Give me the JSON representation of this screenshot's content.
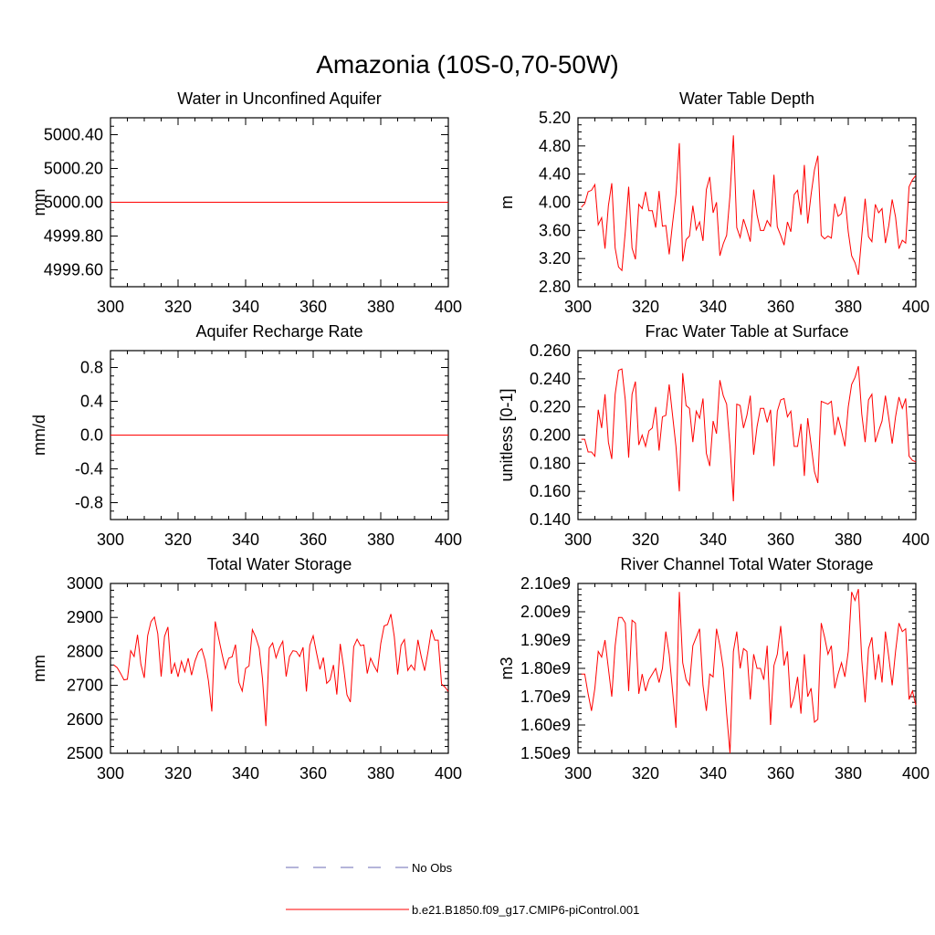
{
  "figure": {
    "title": "Amazonia (10S-0,70-50W)"
  },
  "legend": {
    "items": [
      {
        "label": "No Obs",
        "style": "dashed",
        "color": "#6b6bb5"
      },
      {
        "label": "b.e21.B1850.f09_g17.CMIP6-piControl.001",
        "style": "solid",
        "color": "#ff0000"
      }
    ]
  },
  "colors": {
    "series": "#ff0000",
    "axis": "#000000"
  },
  "chart_data": [
    {
      "type": "line",
      "title": "Water in Unconfined Aquifer",
      "ylabel": "mm",
      "xlim": [
        300,
        400
      ],
      "ylim": [
        4999.5,
        5000.5
      ],
      "xticks": [
        300,
        320,
        340,
        360,
        380,
        400
      ],
      "xtick_labels": [
        "300",
        "320",
        "340",
        "360",
        "380",
        "400"
      ],
      "yticks": [
        4999.6,
        4999.8,
        5000.0,
        5000.2,
        5000.4
      ],
      "ytick_labels": [
        "4999.60",
        "4999.80",
        "5000.00",
        "5000.20",
        "5000.40"
      ],
      "yminor": 0.05,
      "series": [
        {
          "name": "b.e21.B1850.f09_g17.CMIP6-piControl.001",
          "x_start": 300,
          "x_step": 1,
          "values": [
            5000,
            5000,
            5000,
            5000,
            5000,
            5000,
            5000,
            5000,
            5000,
            5000,
            5000,
            5000,
            5000,
            5000,
            5000,
            5000,
            5000,
            5000,
            5000,
            5000,
            5000,
            5000,
            5000,
            5000,
            5000,
            5000,
            5000,
            5000,
            5000,
            5000,
            5000,
            5000,
            5000,
            5000,
            5000,
            5000,
            5000,
            5000,
            5000,
            5000,
            5000,
            5000,
            5000,
            5000,
            5000,
            5000,
            5000,
            5000,
            5000,
            5000,
            5000,
            5000,
            5000,
            5000,
            5000,
            5000,
            5000,
            5000,
            5000,
            5000,
            5000,
            5000,
            5000,
            5000,
            5000,
            5000,
            5000,
            5000,
            5000,
            5000,
            5000,
            5000,
            5000,
            5000,
            5000,
            5000,
            5000,
            5000,
            5000,
            5000,
            5000,
            5000,
            5000,
            5000,
            5000,
            5000,
            5000,
            5000,
            5000,
            5000,
            5000,
            5000,
            5000,
            5000,
            5000,
            5000,
            5000,
            5000,
            5000,
            5000,
            5000
          ]
        }
      ]
    },
    {
      "type": "line",
      "title": "Water Table Depth",
      "ylabel": "m",
      "xlim": [
        300,
        400
      ],
      "ylim": [
        2.8,
        5.2
      ],
      "xticks": [
        300,
        320,
        340,
        360,
        380,
        400
      ],
      "xtick_labels": [
        "300",
        "320",
        "340",
        "360",
        "380",
        "400"
      ],
      "yticks": [
        2.8,
        3.2,
        3.6,
        4.0,
        4.4,
        4.8,
        5.2
      ],
      "ytick_labels": [
        "2.80",
        "3.20",
        "3.60",
        "4.00",
        "4.40",
        "4.80",
        "5.20"
      ],
      "yminor": 0.1,
      "series": [
        {
          "name": "b.e21.B1850.f09_g17.CMIP6-piControl.001",
          "x_start": 301,
          "x_step": 1,
          "values": [
            3.93,
            3.98,
            4.15,
            4.17,
            4.25,
            3.68,
            3.78,
            3.34,
            3.95,
            4.27,
            3.35,
            3.08,
            3.03,
            3.58,
            4.22,
            3.35,
            3.19,
            3.97,
            3.91,
            4.15,
            3.88,
            3.88,
            3.64,
            4.16,
            3.66,
            3.67,
            3.26,
            3.7,
            4.11,
            4.84,
            3.16,
            3.47,
            3.52,
            3.95,
            3.61,
            3.72,
            3.45,
            4.18,
            4.36,
            3.85,
            4.0,
            3.24,
            3.41,
            3.53,
            4.1,
            4.95,
            3.64,
            3.5,
            3.76,
            3.61,
            3.44,
            4.18,
            3.82,
            3.6,
            3.6,
            3.74,
            3.66,
            4.39,
            3.65,
            3.53,
            3.39,
            3.72,
            3.58,
            4.11,
            4.17,
            3.82,
            4.53,
            3.7,
            4.11,
            4.46,
            4.66,
            3.53,
            3.48,
            3.52,
            3.49,
            3.98,
            3.8,
            3.84,
            4.08,
            3.58,
            3.24,
            3.14,
            2.97,
            3.52,
            4.05,
            3.51,
            3.44,
            3.97,
            3.85,
            3.91,
            3.42,
            3.67,
            4.04,
            3.79,
            3.34,
            3.46,
            3.42,
            4.22,
            4.32,
            4.38
          ]
        }
      ]
    },
    {
      "type": "line",
      "title": "Aquifer Recharge Rate",
      "ylabel": "mm/d",
      "xlim": [
        300,
        400
      ],
      "ylim": [
        -1.0,
        1.0
      ],
      "xticks": [
        300,
        320,
        340,
        360,
        380,
        400
      ],
      "xtick_labels": [
        "300",
        "320",
        "340",
        "360",
        "380",
        "400"
      ],
      "yticks": [
        -0.8,
        -0.4,
        0.0,
        0.4,
        0.8
      ],
      "ytick_labels": [
        "-0.8",
        "-0.4",
        "0.0",
        "0.4",
        "0.8"
      ],
      "yminor": 0.1,
      "series": [
        {
          "name": "b.e21.B1850.f09_g17.CMIP6-piControl.001",
          "x_start": 300,
          "x_step": 1,
          "values": [
            0,
            0,
            0,
            0,
            0,
            0,
            0,
            0,
            0,
            0,
            0,
            0,
            0,
            0,
            0,
            0,
            0,
            0,
            0,
            0,
            0,
            0,
            0,
            0,
            0,
            0,
            0,
            0,
            0,
            0,
            0,
            0,
            0,
            0,
            0,
            0,
            0,
            0,
            0,
            0,
            0,
            0,
            0,
            0,
            0,
            0,
            0,
            0,
            0,
            0,
            0,
            0,
            0,
            0,
            0,
            0,
            0,
            0,
            0,
            0,
            0,
            0,
            0,
            0,
            0,
            0,
            0,
            0,
            0,
            0,
            0,
            0,
            0,
            0,
            0,
            0,
            0,
            0,
            0,
            0,
            0,
            0,
            0,
            0,
            0,
            0,
            0,
            0,
            0,
            0,
            0,
            0,
            0,
            0,
            0,
            0,
            0,
            0,
            0,
            0,
            0
          ]
        }
      ]
    },
    {
      "type": "line",
      "title": "Frac Water Table at Surface",
      "ylabel": "unitless [0-1]",
      "xlim": [
        300,
        400
      ],
      "ylim": [
        0.14,
        0.26
      ],
      "xticks": [
        300,
        320,
        340,
        360,
        380,
        400
      ],
      "xtick_labels": [
        "300",
        "320",
        "340",
        "360",
        "380",
        "400"
      ],
      "yticks": [
        0.14,
        0.16,
        0.18,
        0.2,
        0.22,
        0.24,
        0.26
      ],
      "ytick_labels": [
        "0.140",
        "0.160",
        "0.180",
        "0.200",
        "0.220",
        "0.240",
        "0.260"
      ],
      "yminor": 0.005,
      "series": [
        {
          "name": "b.e21.B1850.f09_g17.CMIP6-piControl.001",
          "x_start": 301,
          "x_step": 1,
          "values": [
            0.197,
            0.197,
            0.188,
            0.188,
            0.185,
            0.218,
            0.205,
            0.229,
            0.195,
            0.183,
            0.229,
            0.246,
            0.247,
            0.225,
            0.184,
            0.229,
            0.238,
            0.193,
            0.2,
            0.192,
            0.203,
            0.205,
            0.22,
            0.189,
            0.213,
            0.214,
            0.236,
            0.214,
            0.192,
            0.16,
            0.244,
            0.221,
            0.219,
            0.195,
            0.217,
            0.212,
            0.226,
            0.187,
            0.178,
            0.21,
            0.201,
            0.239,
            0.228,
            0.222,
            0.192,
            0.153,
            0.222,
            0.221,
            0.205,
            0.214,
            0.228,
            0.186,
            0.206,
            0.219,
            0.219,
            0.209,
            0.218,
            0.178,
            0.217,
            0.225,
            0.226,
            0.213,
            0.217,
            0.192,
            0.192,
            0.208,
            0.171,
            0.212,
            0.193,
            0.174,
            0.166,
            0.224,
            0.223,
            0.222,
            0.224,
            0.2,
            0.213,
            0.203,
            0.192,
            0.22,
            0.236,
            0.241,
            0.249,
            0.215,
            0.195,
            0.225,
            0.229,
            0.195,
            0.203,
            0.21,
            0.228,
            0.212,
            0.194,
            0.213,
            0.227,
            0.219,
            0.226,
            0.185,
            0.182,
            0.181
          ]
        }
      ]
    },
    {
      "type": "line",
      "title": "Total Water Storage",
      "ylabel": "mm",
      "xlim": [
        300,
        400
      ],
      "ylim": [
        2500,
        3000
      ],
      "xticks": [
        300,
        320,
        340,
        360,
        380,
        400
      ],
      "xtick_labels": [
        "300",
        "320",
        "340",
        "360",
        "380",
        "400"
      ],
      "yticks": [
        2500,
        2600,
        2700,
        2800,
        2900,
        3000
      ],
      "ytick_labels": [
        "2500",
        "2600",
        "2700",
        "2800",
        "2900",
        "3000"
      ],
      "yminor": 20,
      "series": [
        {
          "name": "b.e21.B1850.f09_g17.CMIP6-piControl.001",
          "x_start": 301,
          "x_step": 1,
          "values": [
            2760,
            2752,
            2735,
            2716,
            2718,
            2802,
            2785,
            2849,
            2762,
            2722,
            2846,
            2888,
            2901,
            2852,
            2726,
            2844,
            2872,
            2734,
            2765,
            2725,
            2771,
            2740,
            2780,
            2730,
            2771,
            2798,
            2808,
            2774,
            2713,
            2623,
            2888,
            2840,
            2793,
            2749,
            2780,
            2784,
            2820,
            2709,
            2683,
            2750,
            2757,
            2864,
            2842,
            2810,
            2719,
            2580,
            2810,
            2825,
            2781,
            2810,
            2830,
            2726,
            2785,
            2802,
            2800,
            2785,
            2812,
            2682,
            2818,
            2846,
            2795,
            2747,
            2782,
            2706,
            2716,
            2760,
            2673,
            2822,
            2754,
            2672,
            2651,
            2814,
            2836,
            2817,
            2819,
            2735,
            2780,
            2758,
            2740,
            2823,
            2875,
            2879,
            2910,
            2844,
            2732,
            2818,
            2835,
            2744,
            2760,
            2745,
            2834,
            2784,
            2743,
            2800,
            2864,
            2833,
            2833,
            2704,
            2695,
            2682
          ]
        }
      ]
    },
    {
      "type": "line",
      "title": "River Channel Total Water Storage",
      "ylabel": "m3",
      "xlim": [
        300,
        400
      ],
      "ylim": [
        1500000000.0,
        2100000000.0
      ],
      "xticks": [
        300,
        320,
        340,
        360,
        380,
        400
      ],
      "xtick_labels": [
        "300",
        "320",
        "340",
        "360",
        "380",
        "400"
      ],
      "yticks": [
        1500000000.0,
        1600000000.0,
        1700000000.0,
        1800000000.0,
        1900000000.0,
        2000000000.0,
        2100000000.0
      ],
      "ytick_labels": [
        "1.50e9",
        "1.60e9",
        "1.70e9",
        "1.80e9",
        "1.90e9",
        "2.00e9",
        "2.10e9"
      ],
      "yminor": 20000000.0,
      "series": [
        {
          "name": "b.e21.B1850.f09_g17.CMIP6-piControl.001",
          "x_start": 301,
          "x_step": 1,
          "values": [
            1780000000.0,
            1780000000.0,
            1710000000.0,
            1650000000.0,
            1730000000.0,
            1860000000.0,
            1840000000.0,
            1900000000.0,
            1800000000.0,
            1700000000.0,
            1880000000.0,
            1980000000.0,
            1980000000.0,
            1960000000.0,
            1720000000.0,
            1970000000.0,
            1960000000.0,
            1710000000.0,
            1780000000.0,
            1720000000.0,
            1760000000.0,
            1780000000.0,
            1800000000.0,
            1750000000.0,
            1800000000.0,
            1930000000.0,
            1850000000.0,
            1720000000.0,
            1590000000.0,
            2070000000.0,
            1820000000.0,
            1760000000.0,
            1740000000.0,
            1880000000.0,
            1910000000.0,
            1940000000.0,
            1740000000.0,
            1650000000.0,
            1780000000.0,
            1770000000.0,
            1940000000.0,
            1880000000.0,
            1800000000.0,
            1640000000.0,
            1500000000.0,
            1860000000.0,
            1930000000.0,
            1800000000.0,
            1870000000.0,
            1860000000.0,
            1690000000.0,
            1850000000.0,
            1800000000.0,
            1800000000.0,
            1760000000.0,
            1880000000.0,
            1600000000.0,
            1810000000.0,
            1850000000.0,
            1950000000.0,
            1810000000.0,
            1860000000.0,
            1660000000.0,
            1700000000.0,
            1770000000.0,
            1640000000.0,
            1850000000.0,
            1700000000.0,
            1730000000.0,
            1610000000.0,
            1620000000.0,
            1960000000.0,
            1910000000.0,
            1850000000.0,
            1880000000.0,
            1730000000.0,
            1780000000.0,
            1820000000.0,
            1770000000.0,
            1860000000.0,
            2070000000.0,
            2040000000.0,
            2080000000.0,
            1830000000.0,
            1680000000.0,
            1870000000.0,
            1910000000.0,
            1760000000.0,
            1850000000.0,
            1750000000.0,
            1930000000.0,
            1840000000.0,
            1740000000.0,
            1860000000.0,
            1960000000.0,
            1930000000.0,
            1940000000.0,
            1690000000.0,
            1720000000.0,
            1670000000.0
          ]
        }
      ]
    }
  ]
}
